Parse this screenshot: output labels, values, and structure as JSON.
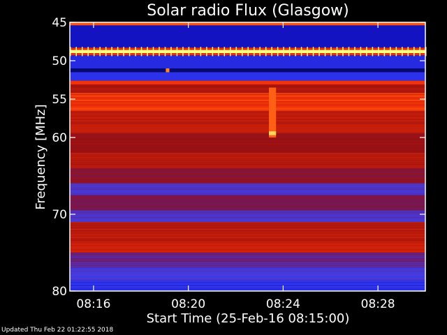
{
  "chart_data": {
    "type": "heatmap",
    "title": "Solar radio Flux (Glasgow)",
    "xlabel": "Start Time (25-Feb-16 08:15:00)",
    "ylabel": "Frequency [MHz]",
    "x_unit": "minutes after 08:15:00",
    "xlim": [
      0,
      15
    ],
    "ylim": [
      45,
      80
    ],
    "y_direction": "top-to-bottom increasing",
    "x_ticks": [
      {
        "value": 1,
        "label": "08:16"
      },
      {
        "value": 5,
        "label": "08:20"
      },
      {
        "value": 9,
        "label": "08:24"
      },
      {
        "value": 13,
        "label": "08:28"
      }
    ],
    "y_ticks": [
      {
        "value": 45,
        "label": "45"
      },
      {
        "value": 50,
        "label": "50"
      },
      {
        "value": 55,
        "label": "55"
      },
      {
        "value": 60,
        "label": "60"
      },
      {
        "value": 70,
        "label": "70"
      },
      {
        "value": 80,
        "label": "80"
      }
    ],
    "colormap": [
      "#00003a",
      "#1414c8",
      "#3c46ff",
      "#6a1a6e",
      "#9a1010",
      "#c81e0a",
      "#ff3a0a",
      "#ff9a20",
      "#ffff80"
    ],
    "frequency_bands": [
      {
        "from": 45,
        "to": 45.4,
        "level": 0.78
      },
      {
        "from": 45.4,
        "to": 48.3,
        "level": 0.12
      },
      {
        "from": 48.3,
        "to": 48.6,
        "level": 0.7
      },
      {
        "from": 48.6,
        "to": 49.0,
        "level": 1.0
      },
      {
        "from": 49.0,
        "to": 49.3,
        "level": 0.7
      },
      {
        "from": 49.3,
        "to": 51.0,
        "level": 0.18
      },
      {
        "from": 51.0,
        "to": 51.5,
        "level": 0.05
      },
      {
        "from": 51.5,
        "to": 52.6,
        "level": 0.2
      },
      {
        "from": 52.6,
        "to": 53.1,
        "level": 0.72
      },
      {
        "from": 53.1,
        "to": 54.2,
        "level": 0.55
      },
      {
        "from": 54.2,
        "to": 56.5,
        "level": 0.72
      },
      {
        "from": 56.5,
        "to": 59.5,
        "level": 0.6
      },
      {
        "from": 59.5,
        "to": 62.0,
        "level": 0.5
      },
      {
        "from": 62.0,
        "to": 64.0,
        "level": 0.58
      },
      {
        "from": 64.0,
        "to": 66.0,
        "level": 0.46
      },
      {
        "from": 66.0,
        "to": 67.5,
        "level": 0.3
      },
      {
        "from": 67.5,
        "to": 69.5,
        "level": 0.42
      },
      {
        "from": 69.5,
        "to": 71.0,
        "level": 0.3
      },
      {
        "from": 71.0,
        "to": 73.5,
        "level": 0.58
      },
      {
        "from": 73.5,
        "to": 75.0,
        "level": 0.62
      },
      {
        "from": 75.0,
        "to": 77.0,
        "level": 0.35
      },
      {
        "from": 77.0,
        "to": 78.5,
        "level": 0.28
      },
      {
        "from": 78.5,
        "to": 80.0,
        "level": 0.2
      }
    ],
    "features": [
      {
        "name": "interference-line",
        "frequency": 48.8,
        "level": 1.0,
        "x_period": 0.25
      },
      {
        "name": "burst",
        "time_from": 8.4,
        "time_to": 8.7,
        "freq_from": 53.5,
        "freq_to": 60.0,
        "level": 0.8
      },
      {
        "name": "burst-peak",
        "time_from": 8.4,
        "time_to": 8.7,
        "freq_from": 59.2,
        "freq_to": 59.7,
        "level": 0.95
      },
      {
        "name": "spot",
        "time_from": 4.05,
        "time_to": 4.2,
        "freq_from": 51.0,
        "freq_to": 51.5,
        "level": 0.85
      }
    ]
  },
  "footer": {
    "updated": "Updated Thu Feb 22 01:22:55 2018"
  }
}
